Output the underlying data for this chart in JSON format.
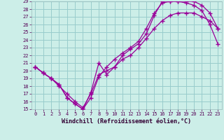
{
  "xlabel": "Windchill (Refroidissement éolien,°C)",
  "bg_color": "#cceee8",
  "grid_color": "#99cccc",
  "line_color": "#990099",
  "xlim": [
    -0.5,
    23.5
  ],
  "ylim": [
    15,
    29
  ],
  "xticks": [
    0,
    1,
    2,
    3,
    4,
    5,
    6,
    7,
    8,
    9,
    10,
    11,
    12,
    13,
    14,
    15,
    16,
    17,
    18,
    19,
    20,
    21,
    22,
    23
  ],
  "yticks": [
    15,
    16,
    17,
    18,
    19,
    20,
    21,
    22,
    23,
    24,
    25,
    26,
    27,
    28,
    29
  ],
  "line1_x": [
    0,
    1,
    2,
    3,
    4,
    5,
    6,
    7,
    8,
    9,
    10,
    11,
    12,
    13,
    14,
    15,
    16,
    17,
    18,
    19,
    20,
    21,
    22,
    23
  ],
  "line1_y": [
    20.5,
    19.7,
    19.0,
    18.2,
    16.5,
    15.7,
    15.0,
    16.5,
    19.2,
    20.5,
    21.5,
    22.3,
    23.0,
    23.8,
    25.5,
    27.5,
    28.8,
    29.0,
    29.0,
    28.8,
    28.5,
    27.8,
    26.0,
    23.5
  ],
  "line2_x": [
    0,
    1,
    2,
    3,
    4,
    5,
    6,
    7,
    8,
    9,
    10,
    11,
    12,
    13,
    14,
    15,
    16,
    17,
    18,
    19,
    20,
    21,
    22,
    23
  ],
  "line2_y": [
    20.5,
    19.7,
    19.0,
    18.0,
    17.0,
    16.0,
    15.2,
    17.0,
    19.5,
    20.0,
    20.5,
    21.5,
    22.0,
    23.0,
    24.2,
    25.5,
    26.5,
    27.2,
    27.5,
    27.5,
    27.5,
    27.0,
    26.5,
    25.5
  ],
  "line3_x": [
    0,
    1,
    2,
    3,
    4,
    5,
    6,
    7,
    8,
    9,
    10,
    11,
    12,
    13,
    14,
    15,
    16,
    17,
    18,
    19,
    20,
    21,
    22,
    23
  ],
  "line3_y": [
    20.5,
    19.7,
    19.0,
    18.2,
    16.5,
    15.7,
    15.0,
    17.2,
    21.0,
    19.5,
    20.5,
    22.0,
    22.8,
    23.5,
    24.8,
    27.2,
    29.0,
    29.0,
    29.0,
    29.0,
    29.0,
    28.5,
    27.5,
    25.5
  ]
}
